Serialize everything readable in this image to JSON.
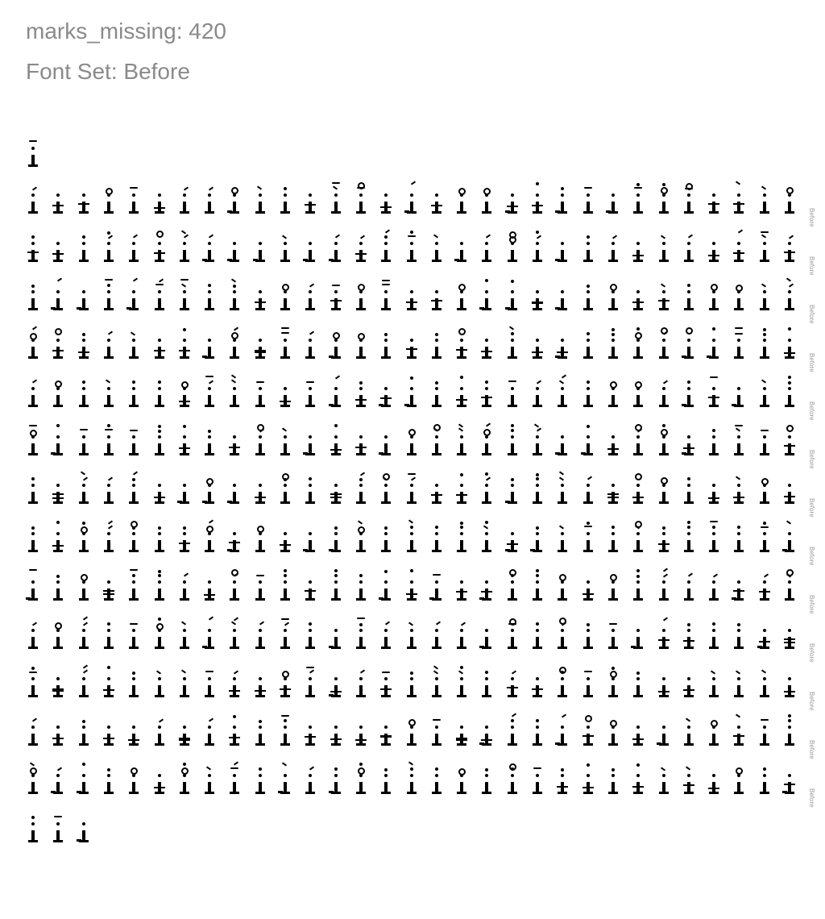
{
  "header": {
    "marks_missing_line": "marks_missing: 420",
    "font_set_line": "Font Set: Before"
  },
  "row_label": "Before",
  "rows": [
    {
      "count": 1
    },
    {
      "count": 31,
      "label": true
    },
    {
      "count": 31,
      "label": true
    },
    {
      "count": 31,
      "label": true
    },
    {
      "count": 31,
      "label": true
    },
    {
      "count": 31,
      "label": true
    },
    {
      "count": 31,
      "label": true
    },
    {
      "count": 31,
      "label": true
    },
    {
      "count": 31,
      "label": true
    },
    {
      "count": 31,
      "label": true
    },
    {
      "count": 31,
      "label": true
    },
    {
      "count": 31,
      "label": true
    },
    {
      "count": 31,
      "label": true
    },
    {
      "count": 31,
      "label": true
    },
    {
      "count": 3
    }
  ]
}
